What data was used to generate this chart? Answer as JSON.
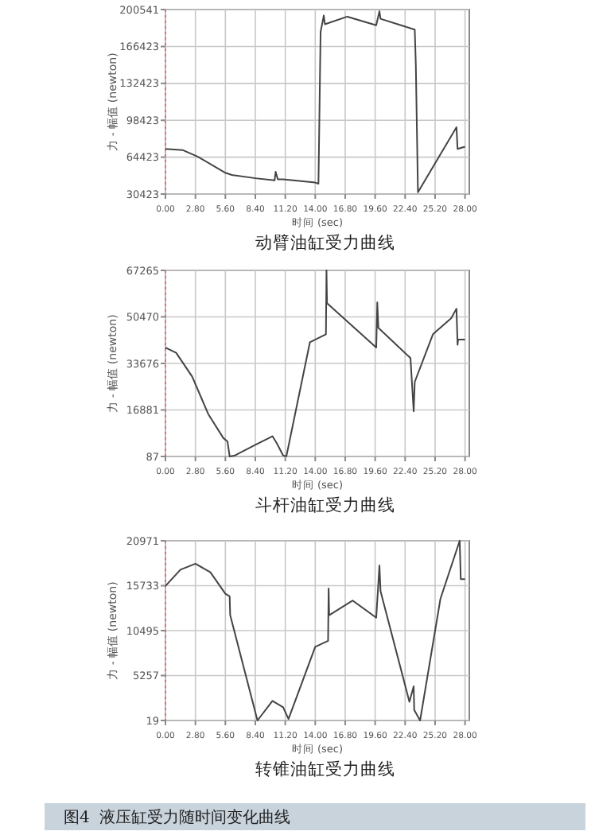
{
  "chart_data": [
    {
      "type": "line",
      "title": "动臂油缸受力曲线",
      "xlabel": "时间 (sec)",
      "ylabel": "力 - 幅值 (newton)",
      "grid": true,
      "marker": "none",
      "line_style": "solid",
      "xlim": [
        0,
        28.4
      ],
      "ylim": [
        30423,
        200541
      ],
      "xticks": [
        {
          "value": 0,
          "label": "0.00"
        },
        {
          "value": 2.8,
          "label": "2.80"
        },
        {
          "value": 5.6,
          "label": "5.60"
        },
        {
          "value": 8.4,
          "label": "8.40"
        },
        {
          "value": 11.2,
          "label": "11.20"
        },
        {
          "value": 14,
          "label": "14.00"
        },
        {
          "value": 16.8,
          "label": "16.80"
        },
        {
          "value": 19.6,
          "label": "19.60"
        },
        {
          "value": 22.4,
          "label": "22.40"
        },
        {
          "value": 25.2,
          "label": "25.20"
        },
        {
          "value": 28,
          "label": "28.00"
        }
      ],
      "yticks": [
        30423,
        64423,
        98423,
        132423,
        166423,
        200541
      ],
      "ref_lines": [
        {
          "axis": "x",
          "value": 0,
          "color": "#e07070",
          "line_style": "dotted"
        }
      ],
      "series": [
        {
          "color": "#444444",
          "x": [
            0,
            1.6,
            3,
            5.6,
            6.2,
            8.4,
            10.2,
            10.3,
            10.5,
            11,
            14,
            14.3,
            14.5,
            14.8,
            14.9,
            17,
            19.7,
            20,
            20.1,
            23.3,
            23.4,
            23.6,
            27.2,
            27.3,
            28
          ],
          "values": [
            72000,
            71000,
            65000,
            50000,
            48000,
            45000,
            43000,
            51000,
            44000,
            44000,
            41000,
            40000,
            180000,
            195000,
            187000,
            194000,
            186000,
            199000,
            192000,
            182000,
            150000,
            32000,
            92000,
            72000,
            74000
          ]
        }
      ]
    },
    {
      "type": "line",
      "title": "斗杆油缸受力曲线",
      "xlabel": "时间 (sec)",
      "ylabel": "力 - 幅值 (newton)",
      "grid": true,
      "marker": "none",
      "line_style": "solid",
      "xlim": [
        0,
        28.4
      ],
      "ylim": [
        87,
        67265
      ],
      "xticks": [
        {
          "value": 0,
          "label": "0.00"
        },
        {
          "value": 2.8,
          "label": "2.80"
        },
        {
          "value": 5.6,
          "label": "5.60"
        },
        {
          "value": 8.4,
          "label": "8.40"
        },
        {
          "value": 11.2,
          "label": "11.20"
        },
        {
          "value": 14,
          "label": "14.00"
        },
        {
          "value": 16.8,
          "label": "16.80"
        },
        {
          "value": 19.6,
          "label": "19.60"
        },
        {
          "value": 22.4,
          "label": "22.40"
        },
        {
          "value": 25.2,
          "label": "25.20"
        },
        {
          "value": 28,
          "label": "28.00"
        }
      ],
      "yticks": [
        87,
        16881,
        33676,
        50470,
        67265
      ],
      "ref_lines": [
        {
          "axis": "x",
          "value": 0,
          "color": "#e07070",
          "line_style": "dotted"
        }
      ],
      "series": [
        {
          "color": "#444444",
          "x": [
            0,
            1,
            2.5,
            4,
            5.4,
            5.8,
            6,
            6.5,
            8.4,
            10,
            10.4,
            11,
            11.3,
            13.5,
            15,
            15.05,
            15.1,
            19.7,
            19.8,
            19.9,
            22.9,
            23.2,
            23.3,
            25,
            26.7,
            27.2,
            27.3,
            27.35,
            28
          ],
          "values": [
            39400,
            37500,
            28900,
            15400,
            6800,
            5500,
            87,
            470,
            4300,
            7400,
            4900,
            470,
            87,
            41300,
            44200,
            67265,
            55400,
            39400,
            55700,
            46500,
            35600,
            16400,
            27000,
            44200,
            50000,
            53400,
            40400,
            42300,
            42300
          ]
        }
      ]
    },
    {
      "type": "line",
      "title": "转锥油缸受力曲线",
      "xlabel": "时间 (sec)",
      "ylabel": "力 - 幅值 (newton)",
      "grid": true,
      "marker": "none",
      "line_style": "solid",
      "xlim": [
        0,
        28.4
      ],
      "ylim": [
        19,
        20971
      ],
      "xticks": [
        {
          "value": 0,
          "label": "0.00"
        },
        {
          "value": 2.8,
          "label": "2.80"
        },
        {
          "value": 5.6,
          "label": "5.60"
        },
        {
          "value": 8.4,
          "label": "8.40"
        },
        {
          "value": 11.2,
          "label": "11.20"
        },
        {
          "value": 14,
          "label": "14.00"
        },
        {
          "value": 16.8,
          "label": "16.80"
        },
        {
          "value": 19.6,
          "label": "19.60"
        },
        {
          "value": 22.4,
          "label": "22.40"
        },
        {
          "value": 25.2,
          "label": "25.20"
        },
        {
          "value": 28,
          "label": "28.00"
        }
      ],
      "yticks": [
        19,
        5257,
        10495,
        15733,
        20971
      ],
      "ref_lines": [
        {
          "axis": "x",
          "value": 0,
          "color": "#e07070",
          "line_style": "dotted"
        }
      ],
      "annotations": [
        "图4  液压缸受力随时间变化曲线"
      ],
      "series": [
        {
          "color": "#444444",
          "x": [
            0,
            1.4,
            2.8,
            4.2,
            5.6,
            6,
            6.05,
            8.6,
            10,
            11,
            11.5,
            14,
            15.2,
            15.25,
            15.3,
            17.5,
            19.7,
            20,
            20.1,
            22.8,
            23.2,
            23.25,
            23.8,
            25.7,
            27.5,
            27.6,
            28
          ],
          "values": [
            15700,
            17600,
            18300,
            17300,
            14800,
            14500,
            12300,
            19,
            2300,
            1560,
            200,
            8600,
            9300,
            15400,
            12300,
            14000,
            12000,
            18100,
            15100,
            2200,
            4000,
            1250,
            19,
            14200,
            20971,
            16500,
            16500
          ]
        }
      ]
    }
  ]
}
